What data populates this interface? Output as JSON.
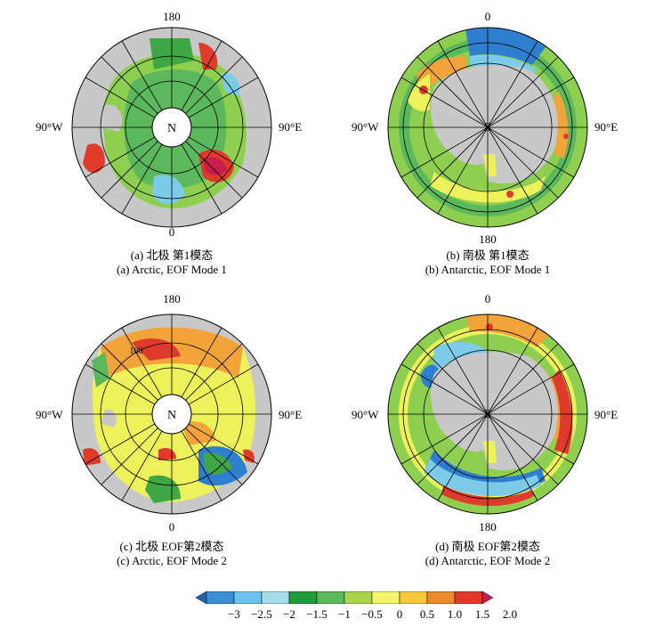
{
  "panels": [
    {
      "id": "a",
      "pole": "N",
      "top_label": "180",
      "bottom_label": "0",
      "left_label": "90°W",
      "right_label": "90°E",
      "caption_cn": "(a) 北极 第1模态",
      "caption_en": "(a) Arctic, EOF Mode 1"
    },
    {
      "id": "b",
      "pole": "S",
      "top_label": "0",
      "bottom_label": "180",
      "left_label": "90°W",
      "right_label": "90°E",
      "caption_cn": "(b) 南极 第1模态",
      "caption_en": "(b) Antarctic, EOF Mode 1"
    },
    {
      "id": "c",
      "pole": "N",
      "top_label": "180",
      "bottom_label": "0",
      "left_label": "90°W",
      "right_label": "90°E",
      "caption_cn": "(c) 北极  EOF第2模态",
      "caption_en": "(c) Arctic, EOF Mode 2",
      "annotation": "180"
    },
    {
      "id": "d",
      "pole": "S",
      "top_label": "0",
      "bottom_label": "180",
      "left_label": "90°W",
      "right_label": "90°E",
      "caption_cn": "(d) 南极  EOF第2模态",
      "caption_en": "(d) Antarctic, EOF Mode 2"
    }
  ],
  "colorbar": {
    "ticks": [
      "−3",
      "−2.5",
      "−2",
      "−1.5",
      "−1",
      "−0.5",
      "0",
      "0.5",
      "1.0",
      "1.5",
      "2.0"
    ],
    "colors": [
      "#2166ac",
      "#3a8fd6",
      "#6cc4ee",
      "#a6dcea",
      "#1e9b3c",
      "#5cb85c",
      "#a7d44a",
      "#f4f46a",
      "#f6c83a",
      "#ef8a2c",
      "#e0392a",
      "#c81e4e"
    ]
  },
  "palette": {
    "land": "#c8c8c8",
    "blue": "#2f7fd1",
    "lightblue": "#7ccbe8",
    "green": "#3fa845",
    "lightgreen": "#8fcf4f",
    "yellow": "#eef25a",
    "orange": "#f2a43a",
    "red": "#e03a2a"
  }
}
